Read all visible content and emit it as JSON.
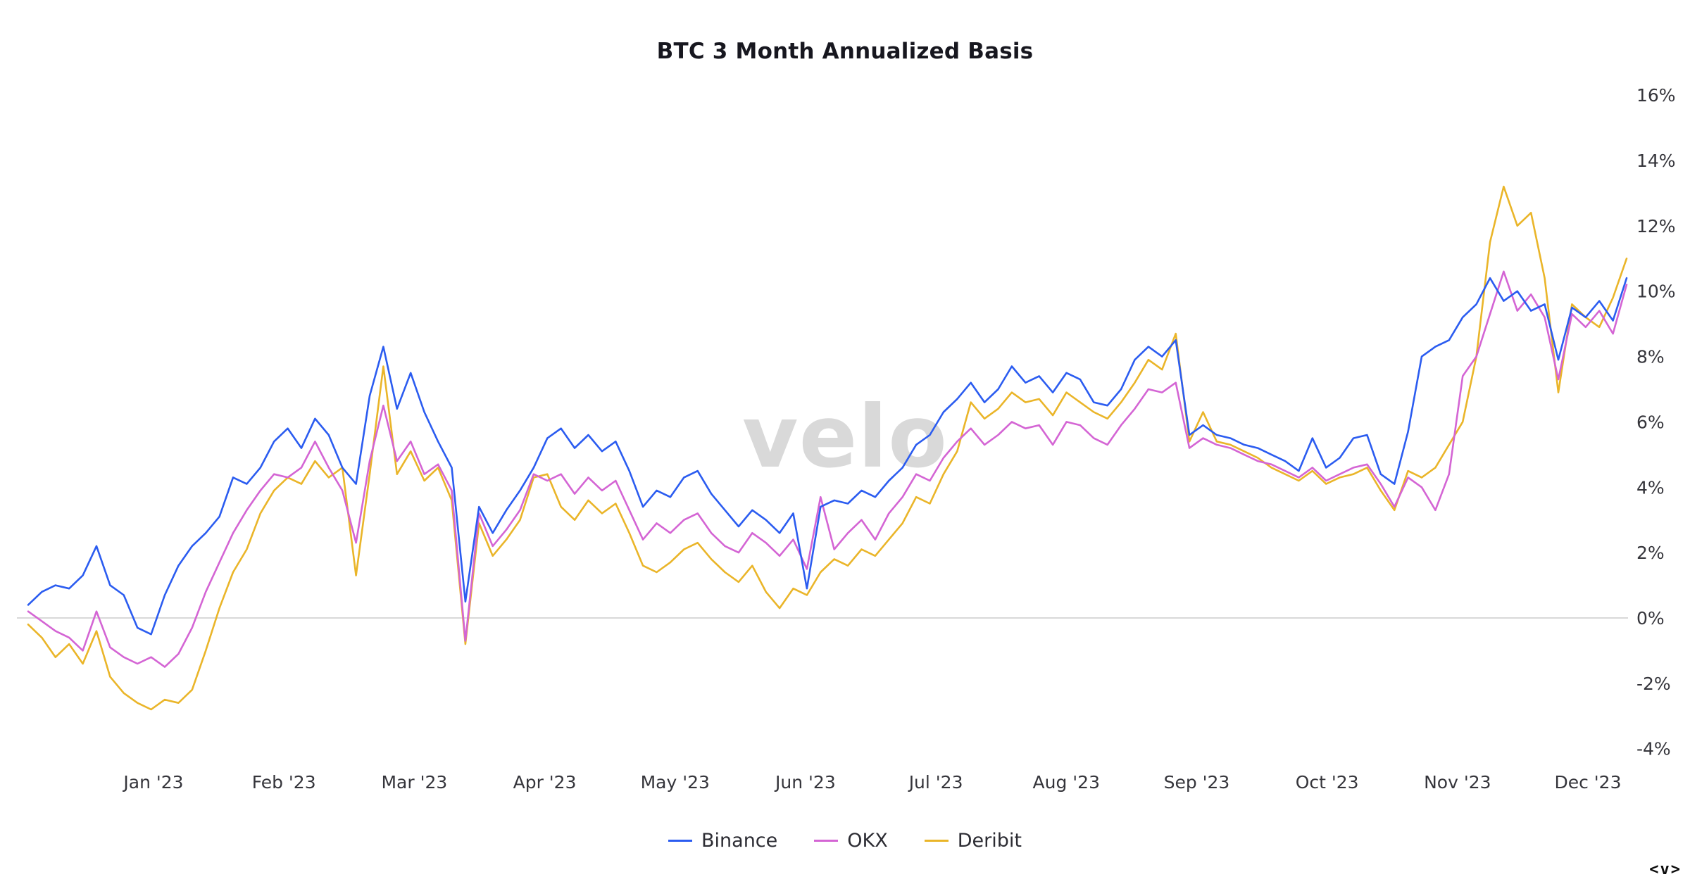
{
  "title": "BTC 3 Month Annualized Basis",
  "watermark": "velo",
  "corner_mark": "<v>",
  "colors": {
    "binance": "#2b5cf0",
    "okx": "#d465d4",
    "deribit": "#eab529",
    "zero_line": "#cccccc",
    "axis_text": "#35353b",
    "title_text": "#17171f",
    "watermark_text": "#d9d9d9"
  },
  "legend": {
    "items": [
      {
        "label": "Binance",
        "color_key": "binance"
      },
      {
        "label": "OKX",
        "color_key": "okx"
      },
      {
        "label": "Deribit",
        "color_key": "deribit"
      }
    ]
  },
  "chart_data": {
    "type": "line",
    "title": "BTC 3 Month Annualized Basis",
    "xlabel": "",
    "ylabel": "",
    "y_unit": "%",
    "ylim": [
      -4,
      16
    ],
    "grid": "zero-line-only",
    "legend_position": "bottom-center",
    "y_tick_values": [
      16,
      14,
      12,
      10,
      8,
      6,
      4,
      2,
      0,
      -2,
      -4
    ],
    "y_tick_labels": [
      "16%",
      "14%",
      "12%",
      "10%",
      "8%",
      "6%",
      "4%",
      "2%",
      "0%",
      "-2%",
      "-4%"
    ],
    "x_tick_labels": [
      "Jan '23",
      "Feb '23",
      "Mar '23",
      "Apr '23",
      "May '23",
      "Jun '23",
      "Jul '23",
      "Aug '23",
      "Sep '23",
      "Oct '23",
      "Nov '23",
      "Dec '23"
    ],
    "x_range_note": "daily series from late Dec 2022 through early Dec 2023, values in percent annualized basis",
    "series": [
      {
        "name": "Binance",
        "color_key": "binance",
        "values": [
          0.4,
          0.8,
          1.0,
          0.9,
          1.3,
          2.2,
          1.0,
          0.7,
          -0.3,
          -0.5,
          0.7,
          1.6,
          2.2,
          2.6,
          3.1,
          4.3,
          4.1,
          4.6,
          5.4,
          5.8,
          5.2,
          6.1,
          5.6,
          4.6,
          4.1,
          6.8,
          8.3,
          6.4,
          7.5,
          6.3,
          5.4,
          4.6,
          0.5,
          3.4,
          2.6,
          3.3,
          3.9,
          4.6,
          5.5,
          5.8,
          5.2,
          5.6,
          5.1,
          5.4,
          4.5,
          3.4,
          3.9,
          3.7,
          4.3,
          4.5,
          3.8,
          3.3,
          2.8,
          3.3,
          3.0,
          2.6,
          3.2,
          0.9,
          3.4,
          3.6,
          3.5,
          3.9,
          3.7,
          4.2,
          4.6,
          5.3,
          5.6,
          6.3,
          6.7,
          7.2,
          6.6,
          7.0,
          7.7,
          7.2,
          7.4,
          6.9,
          7.5,
          7.3,
          6.6,
          6.5,
          7.0,
          7.9,
          8.3,
          8.0,
          8.5,
          5.6,
          5.9,
          5.6,
          5.5,
          5.3,
          5.2,
          5.0,
          4.8,
          4.5,
          5.5,
          4.6,
          4.9,
          5.5,
          5.6,
          4.4,
          4.1,
          5.7,
          8.0,
          8.3,
          8.5,
          9.2,
          9.6,
          10.4,
          9.7,
          10.0,
          9.4,
          9.6,
          7.9,
          9.5,
          9.2,
          9.7,
          9.1,
          10.4
        ]
      },
      {
        "name": "OKX",
        "color_key": "okx",
        "values": [
          0.2,
          -0.1,
          -0.4,
          -0.6,
          -1.0,
          0.2,
          -0.9,
          -1.2,
          -1.4,
          -1.2,
          -1.5,
          -1.1,
          -0.3,
          0.8,
          1.7,
          2.6,
          3.3,
          3.9,
          4.4,
          4.3,
          4.6,
          5.4,
          4.6,
          3.9,
          2.3,
          4.8,
          6.5,
          4.8,
          5.4,
          4.4,
          4.7,
          3.9,
          -0.7,
          3.2,
          2.2,
          2.7,
          3.3,
          4.4,
          4.2,
          4.4,
          3.8,
          4.3,
          3.9,
          4.2,
          3.3,
          2.4,
          2.9,
          2.6,
          3.0,
          3.2,
          2.6,
          2.2,
          2.0,
          2.6,
          2.3,
          1.9,
          2.4,
          1.5,
          3.7,
          2.1,
          2.6,
          3.0,
          2.4,
          3.2,
          3.7,
          4.4,
          4.2,
          4.9,
          5.4,
          5.8,
          5.3,
          5.6,
          6.0,
          5.8,
          5.9,
          5.3,
          6.0,
          5.9,
          5.5,
          5.3,
          5.9,
          6.4,
          7.0,
          6.9,
          7.2,
          5.2,
          5.5,
          5.3,
          5.2,
          5.0,
          4.8,
          4.7,
          4.5,
          4.3,
          4.6,
          4.2,
          4.4,
          4.6,
          4.7,
          4.1,
          3.4,
          4.3,
          4.0,
          3.3,
          4.4,
          7.4,
          8.0,
          9.3,
          10.6,
          9.4,
          9.9,
          9.2,
          7.3,
          9.3,
          8.9,
          9.4,
          8.7,
          10.2
        ]
      },
      {
        "name": "Deribit",
        "color_key": "deribit",
        "values": [
          -0.2,
          -0.6,
          -1.2,
          -0.8,
          -1.4,
          -0.4,
          -1.8,
          -2.3,
          -2.6,
          -2.8,
          -2.5,
          -2.6,
          -2.2,
          -1.0,
          0.3,
          1.4,
          2.1,
          3.2,
          3.9,
          4.3,
          4.1,
          4.8,
          4.3,
          4.6,
          1.3,
          4.4,
          7.7,
          4.4,
          5.1,
          4.2,
          4.6,
          3.6,
          -0.8,
          2.9,
          1.9,
          2.4,
          3.0,
          4.3,
          4.4,
          3.4,
          3.0,
          3.6,
          3.2,
          3.5,
          2.6,
          1.6,
          1.4,
          1.7,
          2.1,
          2.3,
          1.8,
          1.4,
          1.1,
          1.6,
          0.8,
          0.3,
          0.9,
          0.7,
          1.4,
          1.8,
          1.6,
          2.1,
          1.9,
          2.4,
          2.9,
          3.7,
          3.5,
          4.4,
          5.1,
          6.6,
          6.1,
          6.4,
          6.9,
          6.6,
          6.7,
          6.2,
          6.9,
          6.6,
          6.3,
          6.1,
          6.6,
          7.2,
          7.9,
          7.6,
          8.7,
          5.4,
          6.3,
          5.4,
          5.3,
          5.1,
          4.9,
          4.6,
          4.4,
          4.2,
          4.5,
          4.1,
          4.3,
          4.4,
          4.6,
          3.9,
          3.3,
          4.5,
          4.3,
          4.6,
          5.3,
          6.0,
          8.0,
          11.5,
          13.2,
          12.0,
          12.4,
          10.4,
          6.9,
          9.6,
          9.2,
          8.9,
          9.8,
          11.0
        ]
      }
    ]
  }
}
